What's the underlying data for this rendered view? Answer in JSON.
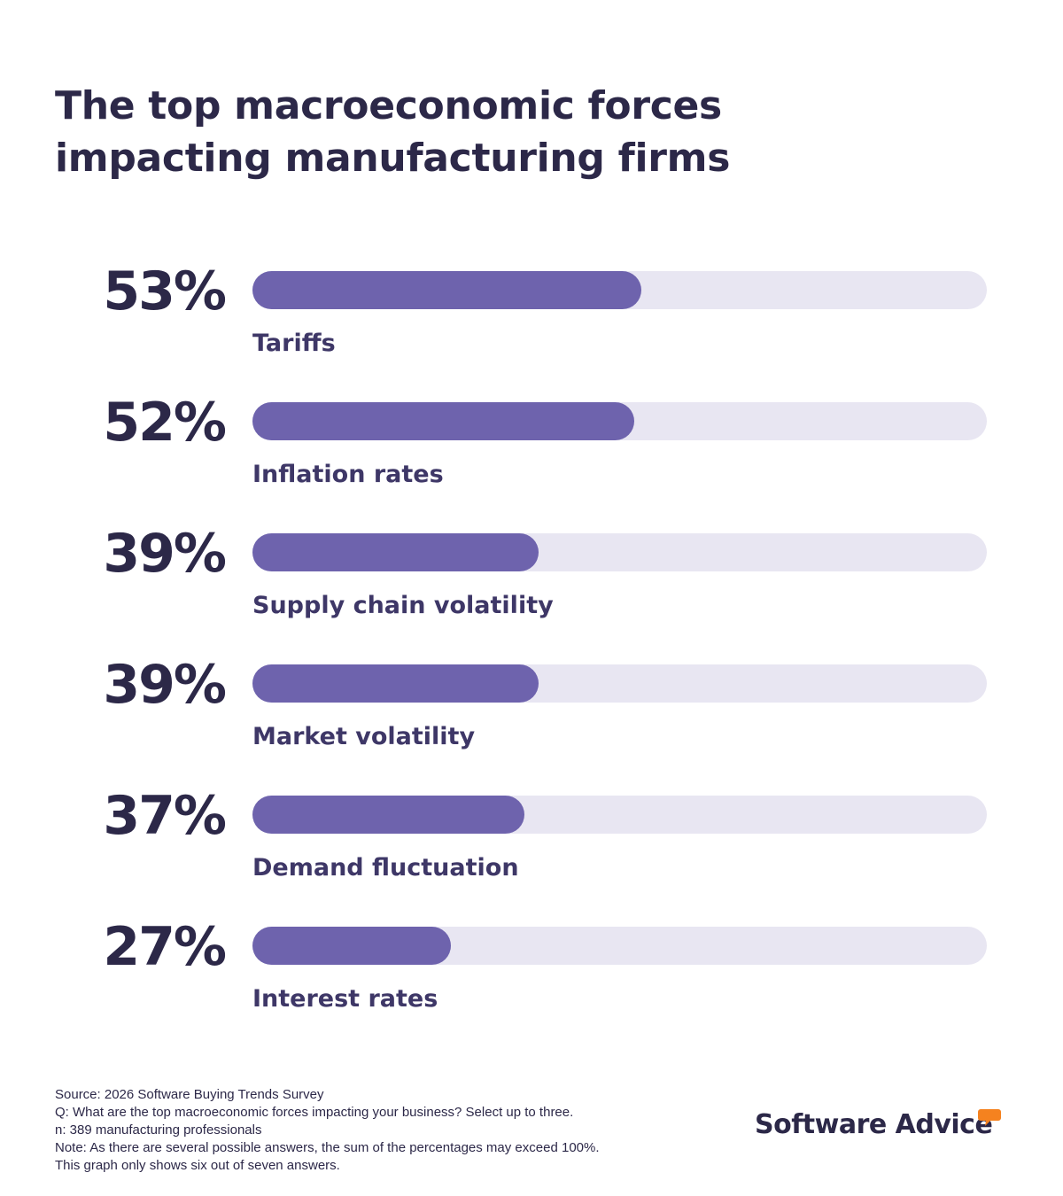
{
  "title": "The top macroeconomic forces impacting manufacturing firms",
  "colors": {
    "bar_fill": "#6e63ad",
    "bar_track": "#e8e6f2",
    "text_dark": "#2c2848",
    "label_text": "#3e3767",
    "brand_accent": "#f5821f"
  },
  "chart_data": {
    "type": "bar",
    "orientation": "horizontal",
    "title": "The top macroeconomic forces impacting manufacturing firms",
    "categories": [
      "Tariffs",
      "Inflation rates",
      "Supply chain volatility",
      "Market volatility",
      "Demand fluctuation",
      "Interest rates"
    ],
    "values": [
      53,
      52,
      39,
      39,
      37,
      27
    ],
    "value_labels": [
      "53%",
      "52%",
      "39%",
      "39%",
      "37%",
      "27%"
    ],
    "unit": "%",
    "xlim": [
      0,
      100
    ],
    "xlabel": "",
    "ylabel": "",
    "grid": false,
    "legend": "none"
  },
  "footnotes": {
    "source": "Source: 2026 Software Buying Trends Survey",
    "question": "Q: What are the top macroeconomic forces impacting your business? Select up to three.",
    "sample": "n: 389 manufacturing professionals",
    "note": "Note: As there are several possible answers, the sum of the percentages may exceed 100%.",
    "scope": "This graph only shows six out of seven answers."
  },
  "brand": {
    "name": "Software Advice",
    "icon": "speech-bubble-icon"
  }
}
